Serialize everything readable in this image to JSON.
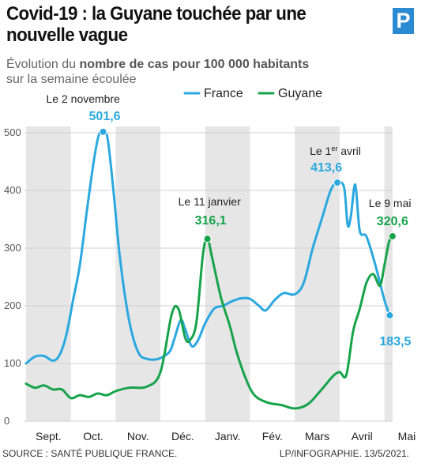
{
  "header": {
    "title": "Covid-19 : la Guyane touchée par une nouvelle vague",
    "subtitle_pre": "Évolution du ",
    "subtitle_bold": "nombre de cas pour 100 000 habitants",
    "subtitle_line2": "sur la semaine écoulée",
    "logo_letter": "P"
  },
  "footer": {
    "source": "SOURCE : SANTÉ PUBLIQUE FRANCE.",
    "credit": "LP/INFOGRAPHIE.  13/5/2021."
  },
  "chart_data": {
    "type": "line",
    "x_unit": "months since 1 Sept 2020",
    "months": [
      "Sept.",
      "Oct.",
      "Nov.",
      "Déc.",
      "Janv.",
      "Fév.",
      "Mars",
      "Avril",
      "Mai"
    ],
    "ylim": [
      0,
      550
    ],
    "yticks": [
      0,
      100,
      200,
      300,
      400,
      500
    ],
    "grid": true,
    "legend_position": "top",
    "colors": {
      "France": "#2aa8df",
      "Guyane": "#16a34a",
      "band": "#e6e6e6",
      "grid": "#d0d0d0"
    },
    "series": [
      {
        "name": "France",
        "color": "#2aa8df",
        "points": [
          [
            0.0,
            100
          ],
          [
            0.2,
            112
          ],
          [
            0.4,
            113
          ],
          [
            0.6,
            105
          ],
          [
            0.75,
            115
          ],
          [
            0.9,
            150
          ],
          [
            1.05,
            210
          ],
          [
            1.2,
            270
          ],
          [
            1.35,
            360
          ],
          [
            1.5,
            445
          ],
          [
            1.62,
            495
          ],
          [
            1.72,
            501.6
          ],
          [
            1.82,
            490
          ],
          [
            1.95,
            400
          ],
          [
            2.1,
            280
          ],
          [
            2.3,
            175
          ],
          [
            2.5,
            120
          ],
          [
            2.7,
            108
          ],
          [
            2.95,
            108
          ],
          [
            3.2,
            120
          ],
          [
            3.3,
            140
          ],
          [
            3.45,
            175
          ],
          [
            3.55,
            160
          ],
          [
            3.7,
            130
          ],
          [
            3.85,
            142
          ],
          [
            4.0,
            170
          ],
          [
            4.2,
            195
          ],
          [
            4.4,
            200
          ],
          [
            4.6,
            208
          ],
          [
            4.8,
            213
          ],
          [
            5.0,
            212
          ],
          [
            5.2,
            200
          ],
          [
            5.35,
            192
          ],
          [
            5.55,
            210
          ],
          [
            5.75,
            222
          ],
          [
            6.0,
            220
          ],
          [
            6.2,
            240
          ],
          [
            6.4,
            300
          ],
          [
            6.6,
            350
          ],
          [
            6.8,
            400
          ],
          [
            6.95,
            413.6
          ],
          [
            7.1,
            405
          ],
          [
            7.18,
            340
          ],
          [
            7.25,
            355
          ],
          [
            7.35,
            410
          ],
          [
            7.45,
            330
          ],
          [
            7.6,
            320
          ],
          [
            7.8,
            270
          ],
          [
            8.0,
            210
          ],
          [
            8.12,
            183.5
          ]
        ]
      },
      {
        "name": "Guyane",
        "color": "#16a34a",
        "points": [
          [
            0.0,
            65
          ],
          [
            0.2,
            58
          ],
          [
            0.4,
            62
          ],
          [
            0.6,
            55
          ],
          [
            0.8,
            55
          ],
          [
            1.0,
            40
          ],
          [
            1.2,
            45
          ],
          [
            1.4,
            42
          ],
          [
            1.6,
            48
          ],
          [
            1.8,
            45
          ],
          [
            2.0,
            52
          ],
          [
            2.3,
            58
          ],
          [
            2.7,
            60
          ],
          [
            3.0,
            85
          ],
          [
            3.25,
            185
          ],
          [
            3.4,
            195
          ],
          [
            3.55,
            145
          ],
          [
            3.65,
            140
          ],
          [
            3.8,
            170
          ],
          [
            3.95,
            290
          ],
          [
            4.05,
            316.1
          ],
          [
            4.15,
            285
          ],
          [
            4.35,
            215
          ],
          [
            4.55,
            165
          ],
          [
            4.7,
            120
          ],
          [
            4.9,
            75
          ],
          [
            5.1,
            45
          ],
          [
            5.4,
            32
          ],
          [
            5.7,
            28
          ],
          [
            6.0,
            22
          ],
          [
            6.3,
            30
          ],
          [
            6.6,
            55
          ],
          [
            6.85,
            78
          ],
          [
            7.0,
            85
          ],
          [
            7.15,
            80
          ],
          [
            7.3,
            155
          ],
          [
            7.45,
            195
          ],
          [
            7.6,
            240
          ],
          [
            7.75,
            255
          ],
          [
            7.9,
            235
          ],
          [
            8.0,
            270
          ],
          [
            8.1,
            310
          ],
          [
            8.18,
            320.6
          ]
        ]
      }
    ],
    "annotations": [
      {
        "series": "France",
        "date_label": "Le 2 novembre",
        "value_label": "501,6",
        "x": 1.72,
        "y": 501.6
      },
      {
        "series": "Guyane",
        "date_label": "Le 11 janvier",
        "value_label": "316,1",
        "x": 4.05,
        "y": 316.1
      },
      {
        "series": "France",
        "date_label_pre": "Le 1",
        "date_label_sup": "er",
        "date_label_post": " avril",
        "value_label": "413,6",
        "x": 6.95,
        "y": 413.6
      },
      {
        "series": "Guyane",
        "date_label": "Le 9 mai",
        "value_label": "320,6",
        "x": 8.18,
        "y": 320.6
      },
      {
        "series": "France",
        "value_label": "183,5",
        "x": 8.12,
        "y": 183.5
      }
    ]
  }
}
